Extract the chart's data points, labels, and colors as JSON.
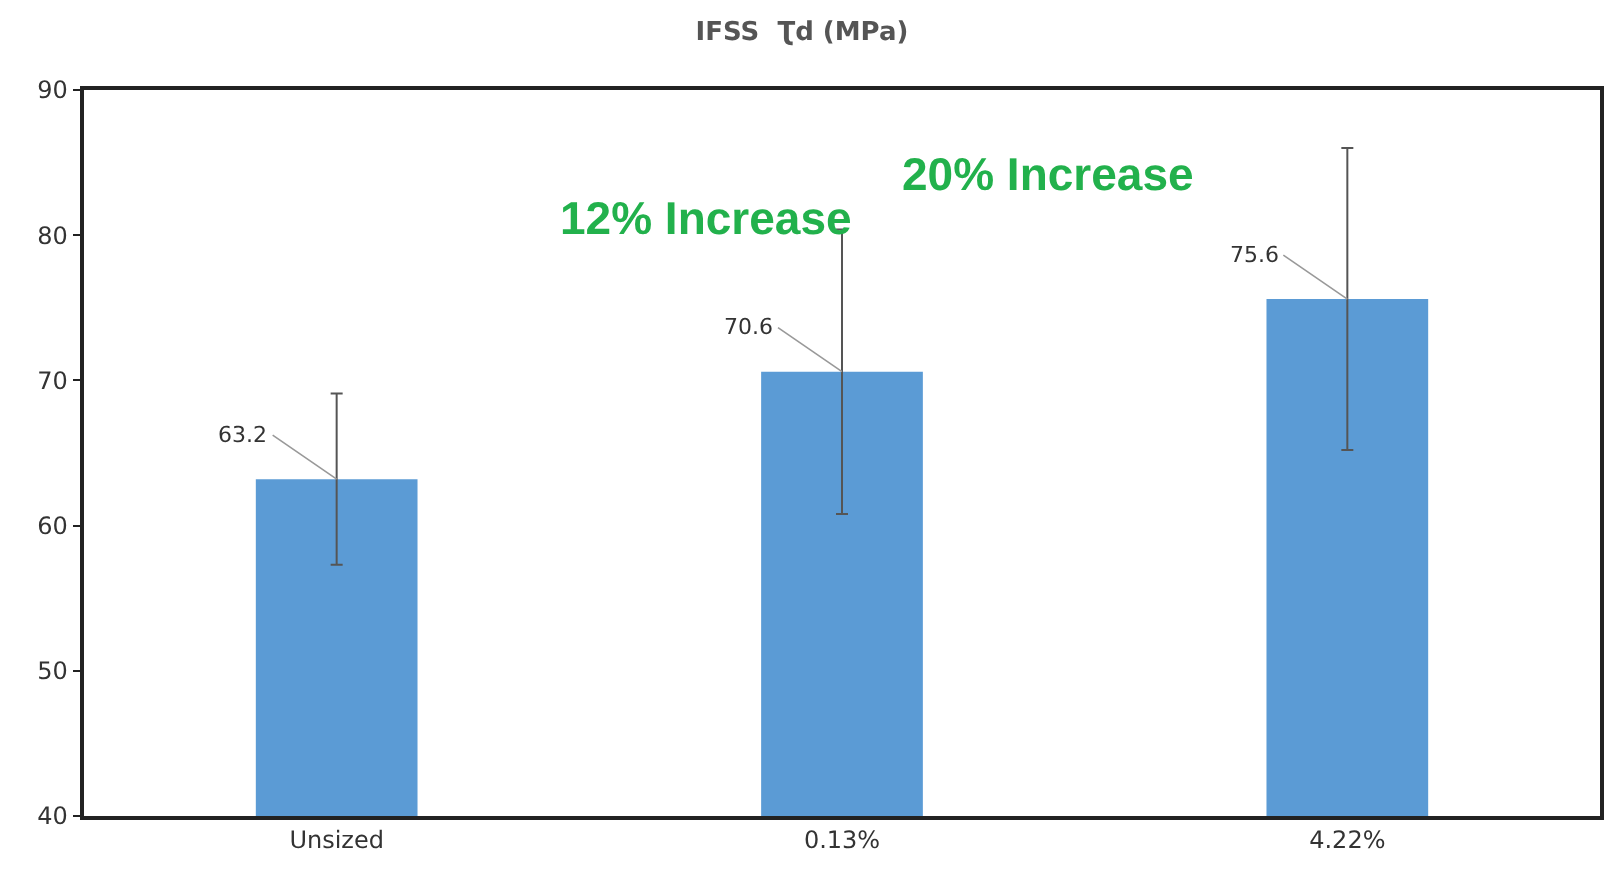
{
  "chart_data": {
    "type": "bar",
    "title": "IFSS  Ʈd (MPa)",
    "categories": [
      "Unsized",
      "0.13%",
      "4.22%"
    ],
    "values": [
      63.2,
      70.6,
      75.6
    ],
    "color": "#5b9bd5",
    "errors": [
      5.9,
      9.8,
      10.4
    ],
    "data_labels": true,
    "ylim": [
      40,
      90
    ],
    "yticks": [
      40,
      50,
      60,
      70,
      80,
      90
    ],
    "grid": false,
    "legend": false,
    "annotations": [
      "12% Increase",
      "20% Increase"
    ]
  }
}
